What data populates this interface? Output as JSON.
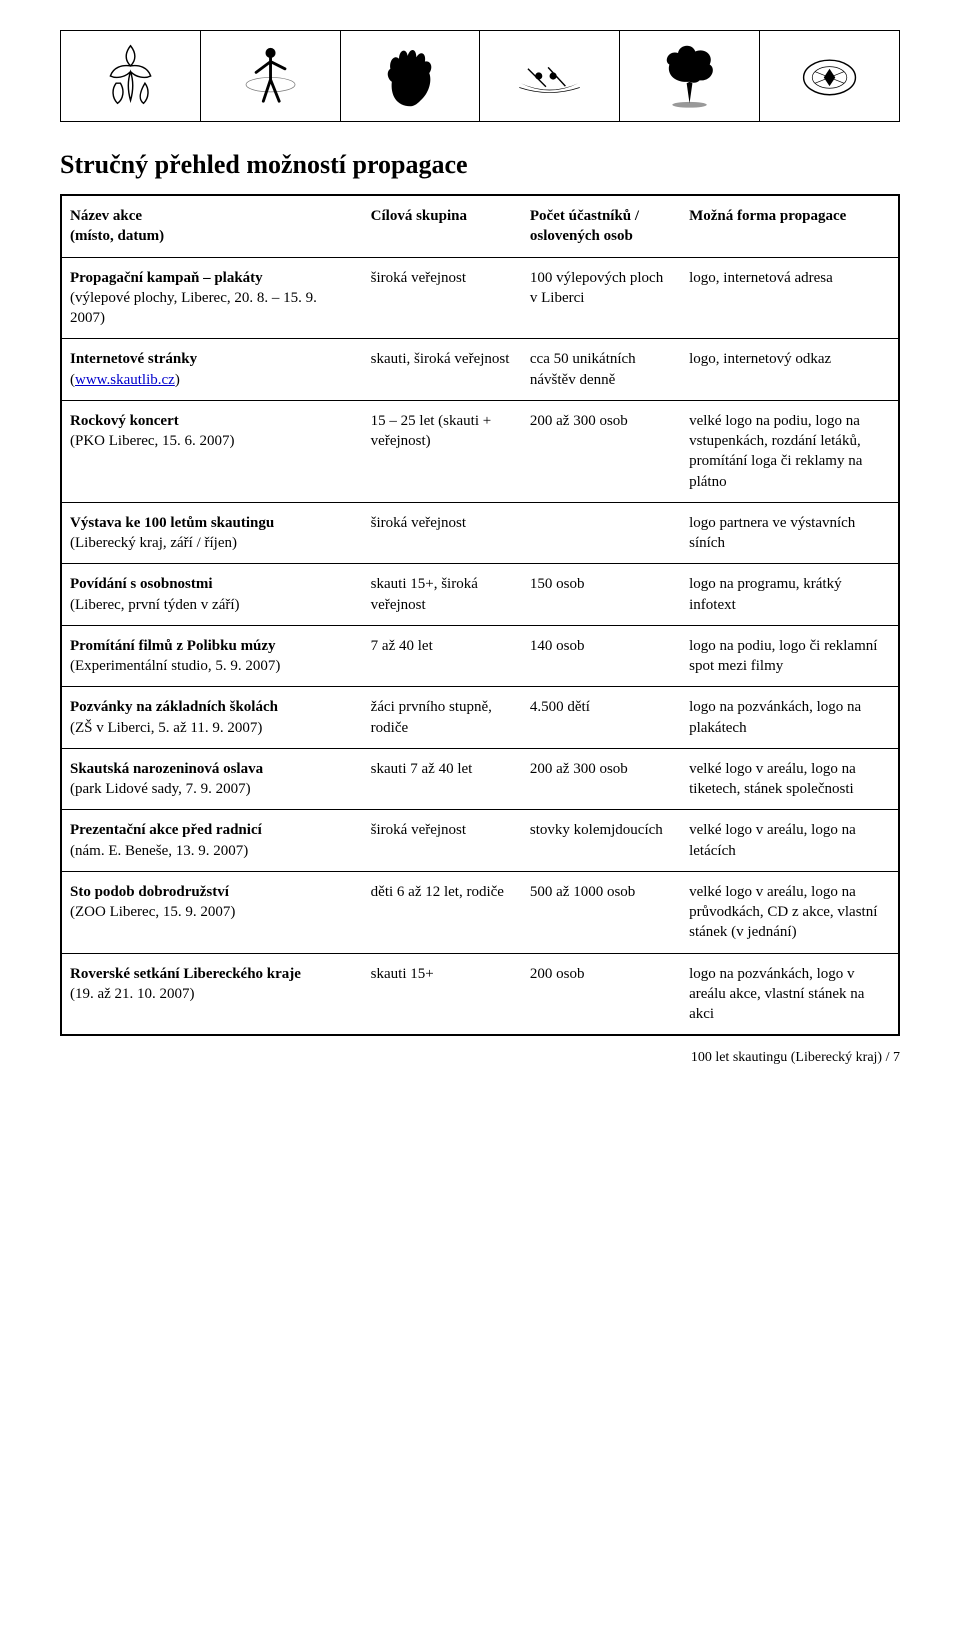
{
  "title": "Stručný přehled možností propagace",
  "header": {
    "c1": {
      "name": {
        "b": "Název akce"
      },
      "sub": "(místo, datum)"
    },
    "c2": "Cílová skupina",
    "c3": {
      "b": "Počet účastníků / oslovených osob"
    },
    "c4": {
      "b": "Možná forma propagace"
    }
  },
  "rows": [
    {
      "name_b": "Propagační kampaň – plakáty",
      "name_sub": "(výlepové plochy, Liberec, 20. 8. – 15. 9. 2007)",
      "cilova": "široká veřejnost",
      "pocet": "100 výlepových ploch v Liberci",
      "forma": "logo, internetová adresa"
    },
    {
      "name_b": "Internetové stránky",
      "name_sub_pre": "(",
      "name_link": "www.skautlib.cz",
      "name_sub_post": ")",
      "cilova": "skauti, široká veřejnost",
      "pocet": "cca 50 unikátních návštěv denně",
      "forma": "logo, internetový odkaz"
    },
    {
      "name_b": "Rockový koncert",
      "name_sub": "(PKO Liberec, 15. 6. 2007)",
      "cilova": "15 – 25 let (skauti + veřejnost)",
      "pocet": "200 až 300 osob",
      "forma": "velké logo na podiu, logo na vstupenkách, rozdání letáků, promítání loga či reklamy na plátno"
    },
    {
      "name_b": "Výstava ke 100 letům skautingu",
      "name_sub": "(Liberecký kraj, září / říjen)",
      "cilova": "široká veřejnost",
      "pocet": "",
      "forma": "logo partnera ve výstavních síních"
    },
    {
      "name_b": "Povídání s osobnostmi",
      "name_sub": "(Liberec, první týden v září)",
      "cilova": "skauti 15+, široká veřejnost",
      "pocet": "150 osob",
      "forma": "logo na programu, krátký infotext"
    },
    {
      "name_b": "Promítání filmů z Polibku múzy",
      "name_sub": "(Experimentální studio, 5. 9. 2007)",
      "cilova": "7 až 40 let",
      "pocet": "140 osob",
      "forma": "logo na podiu, logo či reklamní spot mezi filmy"
    },
    {
      "name_b": "Pozvánky na základních školách",
      "name_sub": "(ZŠ v Liberci, 5. až 11. 9. 2007)",
      "cilova": "žáci prvního stupně, rodiče",
      "pocet": "4.500 dětí",
      "forma": "logo na pozvánkách, logo na plakátech"
    },
    {
      "name_b": "Skautská narozeninová oslava",
      "name_sub": "(park Lidové sady, 7. 9. 2007)",
      "cilova": "skauti 7 až 40 let",
      "pocet": "200 až 300 osob",
      "forma": "velké logo v areálu, logo na tiketech, stánek společnosti"
    },
    {
      "name_b": "Prezentační akce před radnicí",
      "name_sub": "(nám. E. Beneše, 13. 9. 2007)",
      "cilova": "široká veřejnost",
      "pocet": "stovky kolemjdoucích",
      "forma": "velké logo v areálu, logo na letácích"
    },
    {
      "name_b": "Sto podob dobrodružství",
      "name_sub": "(ZOO Liberec, 15. 9. 2007)",
      "cilova": "děti 6 až 12 let, rodiče",
      "pocet": "500 až 1000 osob",
      "forma": "velké logo v areálu, logo na průvodkách, CD z akce, vlastní stánek (v jednání)"
    },
    {
      "name_b": "Roverské setkání Libereckého kraje",
      "name_sub": "(19. až 21. 10. 2007)",
      "cilova": "skauti 15+",
      "pocet": "200 osob",
      "forma": "logo na pozvánkách, logo v areálu akce, vlastní stánek na akci"
    }
  ],
  "footer": "100 let skautingu (Liberecký kraj)  / 7"
}
